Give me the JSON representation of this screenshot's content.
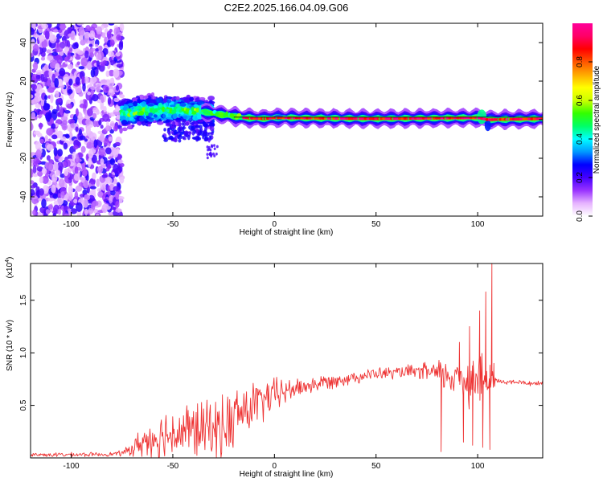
{
  "figure_title": "C2E2.2025.166.04.09.G06",
  "chart_data": [
    {
      "type": "heatmap",
      "title": "C2E2.2025.166.04.09.G06",
      "xlabel": "Height of straight line (km)",
      "ylabel": "Frequency (Hz)",
      "xlim": [
        -120,
        132
      ],
      "ylim": [
        -50,
        50
      ],
      "x_ticks": [
        -100,
        -50,
        0,
        50,
        100
      ],
      "y_ticks": [
        -40,
        -20,
        0,
        20,
        40
      ],
      "grid": false,
      "colorbar": {
        "label": "Normalized spectral amplitude",
        "range": [
          0,
          1
        ],
        "ticks": [
          0.0,
          0.2,
          0.4,
          0.6,
          0.8
        ],
        "colormap": [
          "#ffffff",
          "#e6b3ff",
          "#9933ff",
          "#4400ff",
          "#0000ff",
          "#0099ff",
          "#00ffff",
          "#00ff66",
          "#33ff00",
          "#ccff00",
          "#ffff00",
          "#ffaa00",
          "#ff5500",
          "#ff0000",
          "#ff0066",
          "#ff0099"
        ]
      },
      "regions": [
        {
          "description_id": "noise",
          "x_range": [
            -120,
            -75
          ],
          "freq_range": [
            -50,
            50
          ],
          "amplitude_range": [
            0.05,
            0.25
          ]
        },
        {
          "description_id": "signal_onset",
          "x_range": [
            -75,
            -30
          ],
          "freq_center": 3,
          "freq_halfwidth": 7,
          "amplitude_range": [
            0.2,
            0.5
          ]
        },
        {
          "description_id": "signal_lock",
          "x_range": [
            -30,
            132
          ],
          "freq_center": 0.5,
          "freq_halfwidth": 2.5,
          "amplitude_range": [
            0.8,
            1.0
          ]
        }
      ],
      "ridge": {
        "x": [
          -75,
          -60,
          -45,
          -35,
          -25,
          -15,
          -5,
          0,
          50,
          100,
          105,
          132
        ],
        "freq": [
          3,
          5,
          5,
          4,
          2.5,
          1,
          0.5,
          1,
          0.5,
          1,
          0,
          0.5
        ]
      }
    },
    {
      "type": "line",
      "xlabel": "Height of straight line (km)",
      "ylabel": "SNR (10 * v/v)",
      "y_multiplier": "(x10",
      "y_multiplier_exp": "4",
      "xlim": [
        -120,
        132
      ],
      "ylim": [
        0,
        18500
      ],
      "x_ticks": [
        -100,
        -50,
        0,
        50,
        100
      ],
      "y_ticks": [
        0.5,
        1.0,
        1.5
      ],
      "y_tick_labels": [
        "0.5",
        "1.0",
        "1.5"
      ],
      "grid": false,
      "series": [
        {
          "color": "#ee3333",
          "x": [
            -120,
            -100,
            -80,
            -74,
            -70,
            -65,
            -60,
            -55,
            -50,
            -45,
            -40,
            -35,
            -30,
            -25,
            -22,
            -20,
            -18,
            -15,
            -10,
            -5,
            0,
            5,
            10,
            20,
            30,
            40,
            50,
            60,
            70,
            75,
            80,
            82,
            85,
            90,
            95,
            98,
            100,
            102,
            104,
            105,
            106,
            107,
            108,
            110,
            115,
            120,
            125,
            132
          ],
          "y": [
            300,
            300,
            350,
            500,
            900,
            1500,
            1900,
            2200,
            2400,
            2500,
            2700,
            2600,
            2800,
            2900,
            3200,
            3500,
            4200,
            4400,
            5000,
            5500,
            6000,
            6300,
            6600,
            7000,
            7400,
            7700,
            8000,
            8100,
            8200,
            8200,
            8000,
            7700,
            7800,
            7700,
            7600,
            7500,
            7600,
            7400,
            7200,
            7000,
            7200,
            7500,
            7400,
            7300,
            7200,
            7200,
            7100,
            7100
          ],
          "noise_amplitude": [
            200,
            200,
            200,
            300,
            800,
            1500,
            2000,
            2300,
            2500,
            2700,
            2800,
            2800,
            3000,
            3000,
            3500,
            3300,
            3000,
            2800,
            2400,
            2000,
            1700,
            1300,
            1000,
            800,
            700,
            600,
            600,
            600,
            700,
            900,
            1400,
            1800,
            1300,
            2000,
            2800,
            3000,
            2500,
            2800,
            2000,
            2500,
            2200,
            1500,
            700,
            300,
            250,
            250,
            250,
            250
          ]
        }
      ],
      "spikes": [
        {
          "x": 82,
          "y": 600
        },
        {
          "x": 91,
          "y": 11000
        },
        {
          "x": 93,
          "y": 1500
        },
        {
          "x": 96,
          "y": 12500
        },
        {
          "x": 97.5,
          "y": 1200
        },
        {
          "x": 101,
          "y": 14000
        },
        {
          "x": 102.5,
          "y": 1000
        },
        {
          "x": 104,
          "y": 15800
        },
        {
          "x": 106,
          "y": 800
        },
        {
          "x": 107,
          "y": 18500
        },
        {
          "x": 108,
          "y": 9000
        }
      ]
    }
  ]
}
